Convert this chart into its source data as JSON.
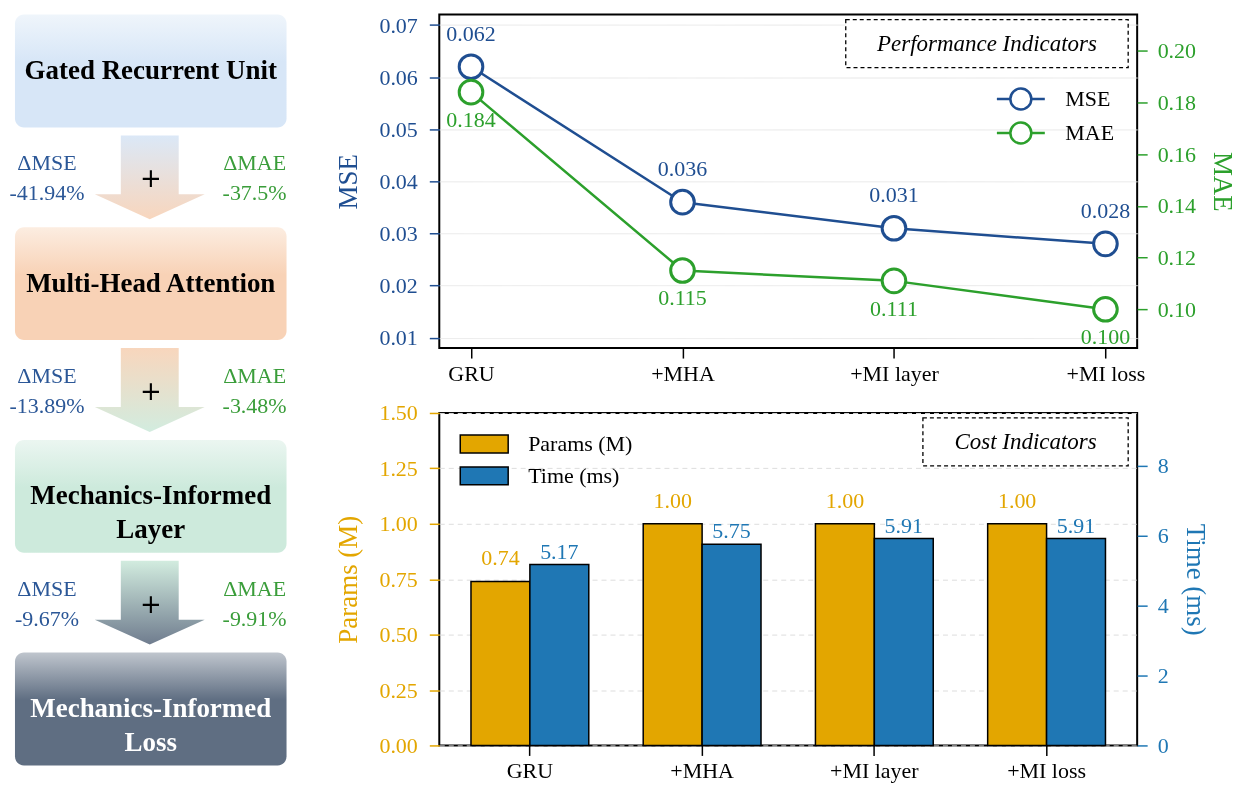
{
  "chart_data": [
    {
      "type": "other",
      "colors": [
        "#d7e6f7",
        "#f8d2b6",
        "#cdeadc",
        "#5f6e82"
      ],
      "annotations": [
        "Gated Recurrent Unit",
        "Multi-Head Attention",
        "Mechanics-Informed Layer",
        "Mechanics-Informed Loss",
        "+",
        "ΔMSE",
        "-41.94%",
        "ΔMAE",
        "-37.5%",
        "+",
        "ΔMSE",
        "-13.89%",
        "ΔMAE",
        "-3.48%",
        "+",
        "ΔMSE",
        "-9.67%",
        "ΔMAE",
        "-9.91%"
      ]
    },
    {
      "type": "line",
      "title": "Performance Indicators",
      "categories": [
        "GRU",
        "+MHA",
        "+MI layer",
        "+MI loss"
      ],
      "ylabel": "MSE",
      "y2label": "MAE",
      "series": [
        {
          "name": "MSE",
          "color": "#1f4e91",
          "values": [
            0.062,
            0.036,
            0.031,
            0.028
          ],
          "value_labels": [
            "0.062",
            "0.036",
            "0.031",
            "0.028"
          ]
        },
        {
          "name": "MAE",
          "color": "#2ca02c",
          "axis": "y2",
          "values": [
            0.184,
            0.115,
            0.111,
            0.1
          ],
          "value_labels": [
            "0.184",
            "0.115",
            "0.111",
            "0.100"
          ]
        }
      ],
      "ylim": [
        0.008,
        0.072
      ],
      "yticks": [
        0.01,
        0.02,
        0.03,
        0.04,
        0.05,
        0.06,
        0.07
      ],
      "y2lim": [
        0.085,
        0.214
      ],
      "y2ticks": [
        {
          "value": 0.1,
          "label": "0.10"
        },
        0.12,
        0.14,
        0.16,
        0.18,
        {
          "value": 0.2,
          "label": "0.20"
        }
      ],
      "grid": "y",
      "legend": "top right",
      "marker": "circle"
    },
    {
      "type": "bar",
      "title": "Cost Indicators",
      "categories": [
        "GRU",
        "+MHA",
        "+MI layer",
        "+MI loss"
      ],
      "ylabel": "Params (M)",
      "y2label": "Time (ms)",
      "series": [
        {
          "name": "Params (M)",
          "color": "#e3a600",
          "values": [
            0.74,
            1.0,
            1.0,
            1.0
          ],
          "value_labels": [
            "0.74",
            "1.00",
            "1.00",
            "1.00"
          ]
        },
        {
          "name": "Time (ms)",
          "color": "#1f77b4",
          "axis": "y2",
          "values": [
            5.17,
            5.75,
            5.91,
            5.91
          ],
          "value_labels": [
            "5.17",
            "5.75",
            "5.91",
            "5.91"
          ]
        }
      ],
      "ylim": [
        0,
        1.5
      ],
      "yticks": [
        {
          "value": 0,
          "label": "0.00"
        },
        0.25,
        {
          "value": 0.5,
          "label": "0.50"
        },
        0.75,
        {
          "value": 1,
          "label": "1.00"
        },
        1.25,
        {
          "value": 1.5,
          "label": "1.50"
        }
      ],
      "y2lim": [
        0,
        9.5
      ],
      "y2ticks": [
        0,
        2,
        4,
        6,
        8
      ],
      "grid": "y",
      "legend": "top left"
    }
  ]
}
